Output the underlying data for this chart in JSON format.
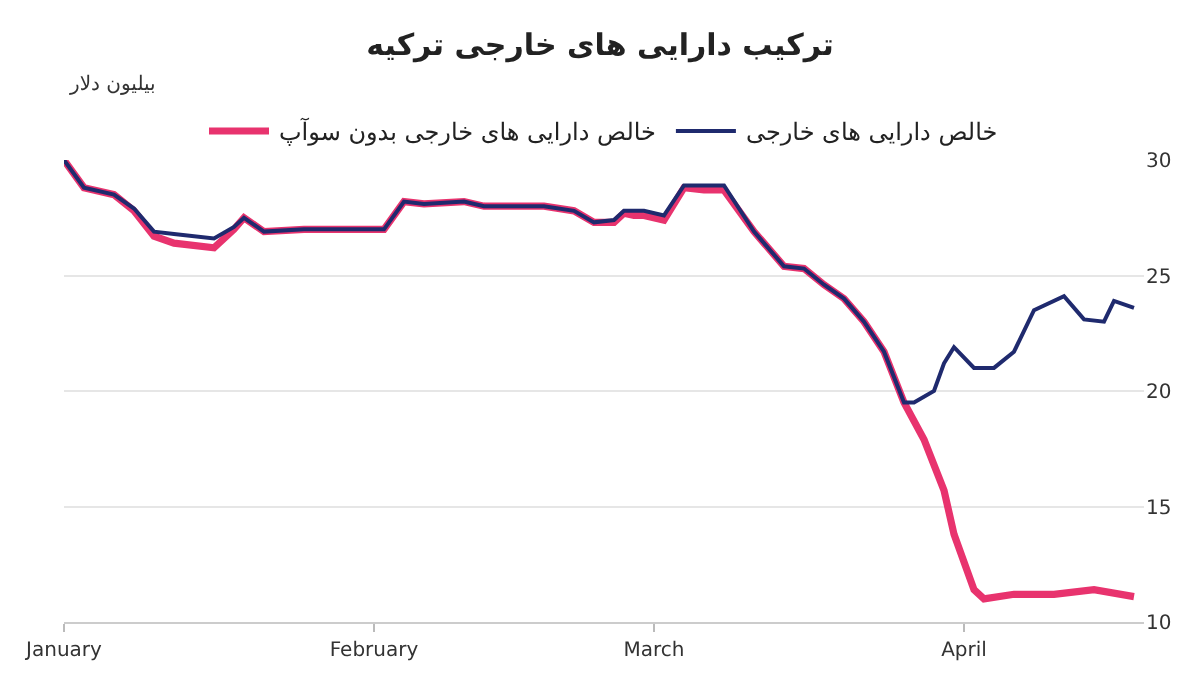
{
  "chart_data": {
    "type": "line",
    "title": "ترکیب دارایی های خارجی ترکیه",
    "ylabel": "بیلیون دلار",
    "xlim": [
      "--01-01",
      "--04-19"
    ],
    "ylim": [
      10,
      30
    ],
    "xticks": [
      {
        "value": "--01-01",
        "label": "January"
      },
      {
        "value": "--02-01",
        "label": "February"
      },
      {
        "value": "--03-01",
        "label": "March"
      },
      {
        "value": "--04-01",
        "label": "April"
      }
    ],
    "yticks": [
      10,
      15,
      20,
      25,
      30
    ],
    "grid": "y",
    "legend": "top",
    "line_style": "solid",
    "marker": "none",
    "series": [
      {
        "name": "خالص دارایی های خارجی بدون سوآپ",
        "color": "#e8336e",
        "x": [
          "--01-01",
          "--01-03",
          "--01-06",
          "--01-08",
          "--01-10",
          "--01-12",
          "--01-16",
          "--01-18",
          "--01-19",
          "--01-21",
          "--01-25",
          "--01-30",
          "--02-02",
          "--02-04",
          "--02-06",
          "--02-10",
          "--02-12",
          "--02-18",
          "--02-21",
          "--02-23",
          "--02-25",
          "--02-26",
          "--02-27",
          "--02-28",
          "--03-02",
          "--03-04",
          "--03-06",
          "--03-08",
          "--03-11",
          "--03-14",
          "--03-16",
          "--03-18",
          "--03-20",
          "--03-22",
          "--03-24",
          "--03-26",
          "--03-28",
          "--03-30",
          "--03-31",
          "--04-02",
          "--04-03",
          "--04-06",
          "--04-10",
          "--04-14",
          "--04-18"
        ],
        "values": [
          30,
          28.8,
          28.5,
          27.8,
          26.7,
          26.4,
          26.2,
          27.0,
          27.5,
          26.9,
          27.0,
          27.0,
          27.0,
          28.2,
          28.1,
          28.2,
          28.0,
          28.0,
          27.8,
          27.3,
          27.3,
          27.7,
          27.6,
          27.6,
          27.4,
          28.8,
          28.7,
          28.7,
          26.9,
          25.4,
          25.3,
          24.6,
          24.0,
          23.0,
          21.7,
          19.5,
          17.9,
          15.7,
          13.8,
          11.4,
          11.0,
          11.2,
          11.2,
          11.4,
          11.1
        ]
      },
      {
        "name": "خالص دارایی های خارجی",
        "color": "#1f2a6e",
        "x": [
          "--01-01",
          "--01-03",
          "--01-06",
          "--01-08",
          "--01-10",
          "--01-12",
          "--01-16",
          "--01-18",
          "--01-19",
          "--01-21",
          "--01-25",
          "--01-30",
          "--02-02",
          "--02-04",
          "--02-06",
          "--02-10",
          "--02-12",
          "--02-18",
          "--02-21",
          "--02-23",
          "--02-25",
          "--02-26",
          "--02-27",
          "--02-28",
          "--03-02",
          "--03-04",
          "--03-06",
          "--03-08",
          "--03-11",
          "--03-14",
          "--03-16",
          "--03-18",
          "--03-20",
          "--03-22",
          "--03-24",
          "--03-26",
          "--03-27",
          "--03-29",
          "--03-30",
          "--03-31",
          "--04-02",
          "--04-04",
          "--04-06",
          "--04-08",
          "--04-11",
          "--04-13",
          "--04-15",
          "--04-16",
          "--04-18"
        ],
        "values": [
          30,
          28.8,
          28.5,
          27.9,
          26.9,
          26.8,
          26.6,
          27.1,
          27.5,
          26.9,
          27.0,
          27.0,
          27.0,
          28.2,
          28.1,
          28.2,
          28.0,
          28.0,
          27.8,
          27.3,
          27.4,
          27.8,
          27.8,
          27.8,
          27.6,
          28.9,
          28.9,
          28.9,
          26.9,
          25.4,
          25.3,
          24.6,
          24.0,
          23.0,
          21.7,
          19.5,
          19.5,
          20.0,
          21.2,
          21.9,
          21.0,
          21.0,
          21.7,
          23.5,
          24.1,
          23.1,
          23.0,
          23.9,
          23.6
        ]
      }
    ]
  }
}
